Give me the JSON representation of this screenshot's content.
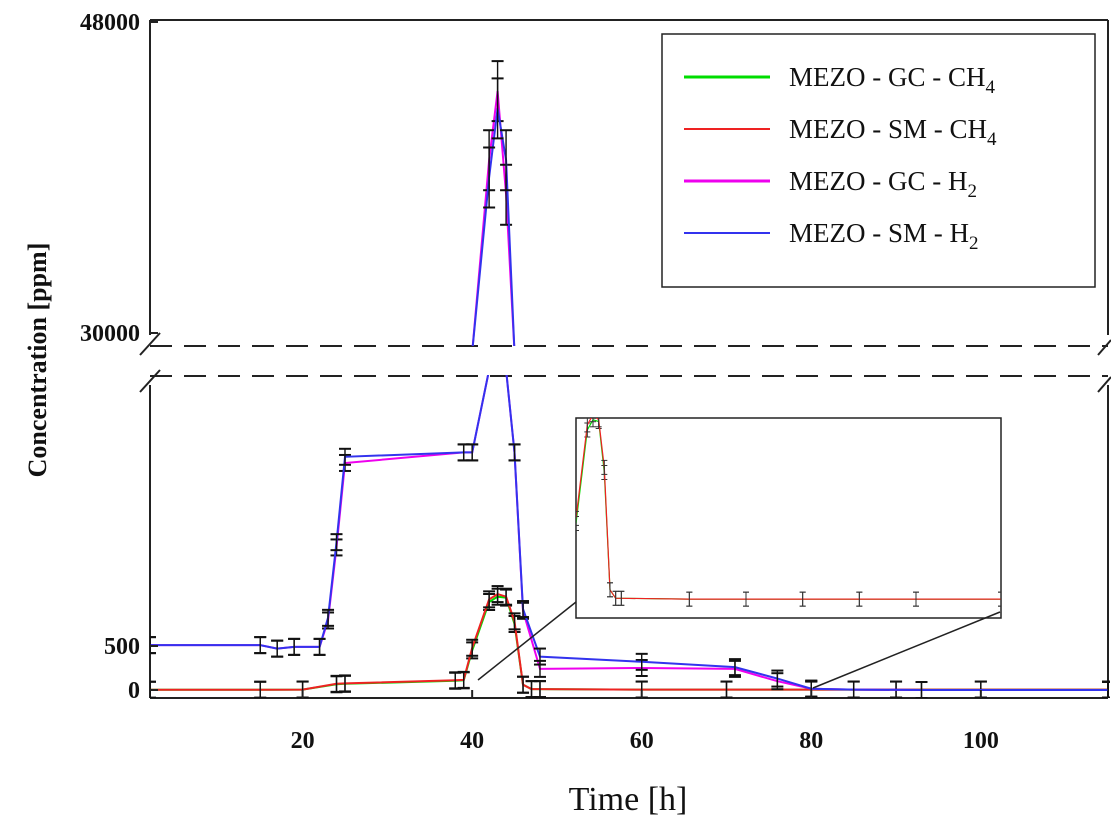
{
  "chart_data": {
    "type": "line",
    "xlabel": "Time [h]",
    "ylabel": "Concentration [ppm]",
    "xlim": [
      2,
      115
    ],
    "x_ticks": [
      "20",
      "40",
      "60",
      "80",
      "100"
    ],
    "y_ticks_lower": [
      "0",
      "500"
    ],
    "y_ticks_upper": [
      "30000",
      "48000"
    ],
    "y_axis_break": [
      2700,
      30000
    ],
    "grid": false,
    "legend_position": "top-right",
    "series": [
      {
        "name": "MEZO - GC - CH4",
        "color": "#00dd00",
        "x": [
          2,
          15,
          20,
          24,
          25,
          38,
          39,
          40,
          42,
          43,
          44,
          45,
          46,
          47,
          48,
          60,
          70,
          80,
          90,
          100,
          115
        ],
        "y": [
          3,
          3,
          5,
          65,
          70,
          105,
          110,
          450,
          1000,
          1060,
          1050,
          750,
          60,
          10,
          10,
          5,
          5,
          5,
          5,
          5,
          5
        ]
      },
      {
        "name": "MEZO - SM - CH4",
        "color": "#ee2222",
        "x": [
          2,
          15,
          20,
          24,
          25,
          38,
          39,
          40,
          42,
          43,
          44,
          45,
          46,
          47,
          48,
          60,
          70,
          80,
          90,
          100,
          115
        ],
        "y": [
          3,
          3,
          5,
          70,
          75,
          110,
          115,
          480,
          1030,
          1090,
          1060,
          780,
          60,
          10,
          10,
          5,
          5,
          5,
          5,
          5,
          5
        ]
      },
      {
        "name": "MEZO - GC - H2",
        "color": "#ee00ee",
        "x": [
          2,
          15,
          17,
          19,
          22,
          23,
          24,
          25,
          39,
          40,
          42,
          43,
          44,
          45,
          46,
          48,
          60,
          71,
          76,
          80,
          85,
          93,
          115
        ],
        "y": [
          510,
          510,
          470,
          490,
          490,
          790,
          1620,
          2580,
          2700,
          2700,
          40000,
          44000,
          38000,
          2700,
          900,
          240,
          250,
          240,
          100,
          15,
          5,
          0,
          0
        ]
      },
      {
        "name": "MEZO - SM - H2",
        "color": "#3333ee",
        "x": [
          2,
          15,
          17,
          19,
          22,
          23,
          24,
          25,
          39,
          40,
          42,
          43,
          44,
          45,
          46,
          48,
          60,
          71,
          76,
          80,
          85,
          93,
          115
        ],
        "y": [
          510,
          510,
          470,
          490,
          490,
          820,
          1680,
          2650,
          2700,
          2700,
          39000,
          43000,
          40000,
          2700,
          920,
          380,
          320,
          260,
          130,
          15,
          5,
          0,
          0
        ]
      }
    ]
  },
  "legend": {
    "entries": [
      {
        "text": "MEZO - GC - CH",
        "sub": "4",
        "color": "#00dd00"
      },
      {
        "text": "MEZO - SM - CH",
        "sub": "4",
        "color": "#ee2222"
      },
      {
        "text": "MEZO - GC - H",
        "sub": "2",
        "color": "#ee00ee"
      },
      {
        "text": "MEZO - SM - H",
        "sub": "2",
        "color": "#3333ee"
      }
    ]
  }
}
